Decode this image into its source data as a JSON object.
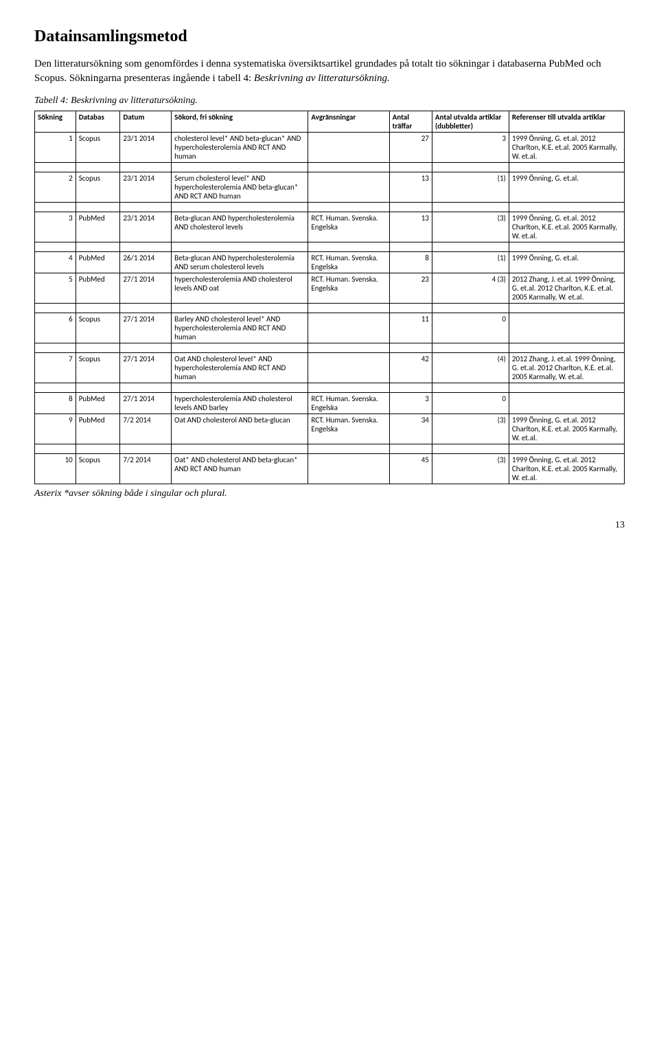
{
  "heading": "Datainsamlingsmetod",
  "intro_part1": "Den litteratursökning som genomfördes i denna systematiska översiktsartikel grundades på totalt tio sökningar i databaserna PubMed och Scopus. Sökningarna presenteras ingående i tabell 4: ",
  "intro_italic": "Beskrivning av litteratursökning.",
  "caption": "Tabell 4: Beskrivning av litteratursökning.",
  "headers": {
    "sokning": "Sökning",
    "databas": "Databas",
    "datum": "Datum",
    "sokord": "Sökord, fri sökning",
    "avgr": "Avgränsningar",
    "traffar": "Antal träffar",
    "utvalda": "Antal utvalda artiklar (dubbletter)",
    "ref": "Referenser till utvalda artiklar"
  },
  "rows": [
    {
      "n": "1",
      "db": "Scopus",
      "date": "23/1 2014",
      "q": "cholesterol level* AND beta-glucan* AND hypercholesterolemia AND RCT AND human",
      "lim": "",
      "hits": "27",
      "sel": "3",
      "ref": "1999 Önning, G. et.al. 2012 Charlton, K.E. et.al. 2005 Karmally, W. et.al."
    },
    {
      "n": "2",
      "db": "Scopus",
      "date": "23/1 2014",
      "q": "Serum cholesterol level* AND hypercholesterolemia AND beta-glucan* AND RCT AND human",
      "lim": "",
      "hits": "13",
      "sel": "(1)",
      "ref": "1999 Önning, G. et.al."
    },
    {
      "n": "3",
      "db": "PubMed",
      "date": "23/1 2014",
      "q": "Beta-glucan AND hypercholesterolemia AND cholesterol levels",
      "lim": "RCT. Human. Svenska. Engelska",
      "hits": "13",
      "sel": "(3)",
      "ref": "1999 Önning, G. et.al. 2012 Charlton, K.E. et.al. 2005 Karmally, W. et.al."
    },
    {
      "n": "4",
      "db": "PubMed",
      "date": "26/1 2014",
      "q": "Beta-glucan AND hypercholesterolemia AND serum cholesterol levels",
      "lim": "RCT. Human. Svenska. Engelska",
      "hits": "8",
      "sel": "(1)",
      "ref": "1999 Önning, G. et.al."
    },
    {
      "n": "5",
      "db": "PubMed",
      "date": "27/1 2014",
      "q": "hypercholesterolemia AND cholesterol levels AND oat",
      "lim": "RCT. Human. Svenska. Engelska",
      "hits": "23",
      "sel": "4 (3)",
      "ref": "2012 Zhang, J. et.al. 1999 Önning, G. et.al. 2012 Charlton, K.E. et.al. 2005 Karmally, W. et.al."
    },
    {
      "n": "6",
      "db": "Scopus",
      "date": "27/1 2014",
      "q": "Barley AND cholesterol level* AND hypercholesterolemia AND RCT AND human",
      "lim": "",
      "hits": "11",
      "sel": "0",
      "ref": ""
    },
    {
      "n": "7",
      "db": "Scopus",
      "date": "27/1 2014",
      "q": "Oat AND cholesterol level* AND hypercholesterolemia AND RCT AND human",
      "lim": "",
      "hits": "42",
      "sel": "(4)",
      "ref": "2012 Zhang, J. et.al. 1999 Önning, G. et.al. 2012 Charlton, K.E. et.al. 2005 Karmally, W. et.al."
    },
    {
      "n": "8",
      "db": "PubMed",
      "date": "27/1 2014",
      "q": "hypercholesterolemia AND cholesterol levels AND barley",
      "lim": "RCT. Human. Svenska. Engelska",
      "hits": "3",
      "sel": "0",
      "ref": ""
    },
    {
      "n": "9",
      "db": "PubMed",
      "date": "7/2 2014",
      "q": "Oat AND cholesterol AND beta-glucan",
      "lim": "RCT. Human. Svenska. Engelska",
      "hits": "34",
      "sel": "(3)",
      "ref": "1999 Önning, G. et.al. 2012 Charlton, K.E. et.al. 2005 Karmally, W. et.al."
    },
    {
      "n": "10",
      "db": "Scopus",
      "date": "7/2 2014",
      "q": "Oat* AND cholesterol AND beta-glucan* AND RCT AND human",
      "lim": "",
      "hits": "45",
      "sel": "(3)",
      "ref": "1999 Önning, G. et.al. 2012 Charlton, K.E. et.al. 2005 Karmally, W. et.al."
    }
  ],
  "spacer_after": [
    1,
    2,
    3,
    5,
    6,
    7,
    9
  ],
  "footnote": "Asterix *avser sökning både i singular och plural.",
  "page": "13"
}
